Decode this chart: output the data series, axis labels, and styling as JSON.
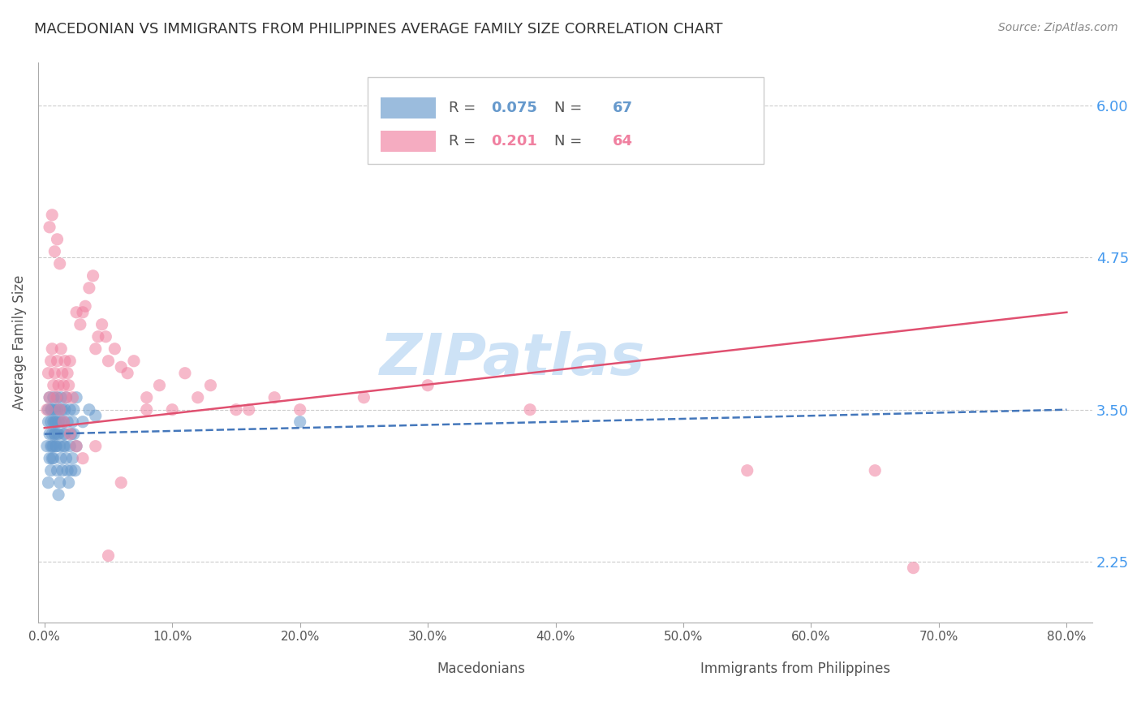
{
  "title": "MACEDONIAN VS IMMIGRANTS FROM PHILIPPINES AVERAGE FAMILY SIZE CORRELATION CHART",
  "source": "Source: ZipAtlas.com",
  "ylabel": "Average Family Size",
  "yticks_right": [
    2.25,
    3.5,
    4.75,
    6.0
  ],
  "ymin": 1.75,
  "ymax": 6.35,
  "xmin": -0.005,
  "xmax": 0.82,
  "legend_r1": "R = ",
  "legend_v1": "0.075",
  "legend_n1_label": "N = ",
  "legend_n1_val": "67",
  "legend_r2": "R = ",
  "legend_v2": "0.201",
  "legend_n2_label": "N = ",
  "legend_n2_val": "64",
  "macedonian_scatter_x": [
    0.002,
    0.003,
    0.003,
    0.004,
    0.004,
    0.005,
    0.005,
    0.005,
    0.006,
    0.006,
    0.006,
    0.007,
    0.007,
    0.007,
    0.008,
    0.008,
    0.008,
    0.009,
    0.009,
    0.01,
    0.01,
    0.01,
    0.011,
    0.011,
    0.012,
    0.012,
    0.013,
    0.013,
    0.014,
    0.015,
    0.015,
    0.016,
    0.016,
    0.017,
    0.018,
    0.02,
    0.021,
    0.022,
    0.023,
    0.025,
    0.003,
    0.004,
    0.005,
    0.006,
    0.007,
    0.008,
    0.009,
    0.01,
    0.011,
    0.012,
    0.013,
    0.014,
    0.015,
    0.016,
    0.017,
    0.018,
    0.019,
    0.02,
    0.021,
    0.022,
    0.023,
    0.024,
    0.025,
    0.03,
    0.035,
    0.04,
    0.2
  ],
  "macedonian_scatter_y": [
    3.2,
    3.4,
    3.5,
    3.6,
    3.3,
    3.4,
    3.5,
    3.2,
    3.1,
    3.3,
    3.5,
    3.4,
    3.2,
    3.6,
    3.3,
    3.4,
    3.5,
    3.2,
    3.4,
    3.3,
    3.5,
    3.6,
    3.4,
    3.3,
    3.5,
    3.2,
    3.4,
    3.6,
    3.5,
    3.3,
    3.4,
    3.5,
    3.2,
    3.6,
    3.4,
    3.5,
    3.3,
    3.4,
    3.5,
    3.6,
    2.9,
    3.1,
    3.0,
    3.2,
    3.1,
    3.3,
    3.2,
    3.0,
    2.8,
    2.9,
    3.1,
    3.0,
    3.2,
    3.3,
    3.1,
    3.0,
    2.9,
    3.2,
    3.0,
    3.1,
    3.3,
    3.0,
    3.2,
    3.4,
    3.5,
    3.45,
    3.4
  ],
  "philippines_scatter_x": [
    0.002,
    0.003,
    0.004,
    0.005,
    0.006,
    0.007,
    0.008,
    0.009,
    0.01,
    0.011,
    0.012,
    0.013,
    0.014,
    0.015,
    0.016,
    0.017,
    0.018,
    0.019,
    0.02,
    0.022,
    0.025,
    0.028,
    0.03,
    0.032,
    0.035,
    0.038,
    0.04,
    0.042,
    0.045,
    0.048,
    0.05,
    0.055,
    0.06,
    0.065,
    0.07,
    0.08,
    0.09,
    0.1,
    0.11,
    0.12,
    0.13,
    0.15,
    0.16,
    0.18,
    0.2,
    0.25,
    0.3,
    0.38,
    0.55,
    0.68,
    0.004,
    0.006,
    0.008,
    0.01,
    0.012,
    0.015,
    0.02,
    0.025,
    0.03,
    0.04,
    0.05,
    0.06,
    0.08,
    0.65
  ],
  "philippines_scatter_y": [
    3.5,
    3.8,
    3.6,
    3.9,
    4.0,
    3.7,
    3.8,
    3.6,
    3.9,
    3.7,
    3.5,
    4.0,
    3.8,
    3.7,
    3.9,
    3.6,
    3.8,
    3.7,
    3.9,
    3.6,
    4.3,
    4.2,
    4.3,
    4.35,
    4.5,
    4.6,
    4.0,
    4.1,
    4.2,
    4.1,
    3.9,
    4.0,
    3.85,
    3.8,
    3.9,
    3.6,
    3.7,
    3.5,
    3.8,
    3.6,
    3.7,
    3.5,
    3.5,
    3.6,
    3.5,
    3.6,
    3.7,
    3.5,
    3.0,
    2.2,
    5.0,
    5.1,
    4.8,
    4.9,
    4.7,
    3.4,
    3.3,
    3.2,
    3.1,
    3.2,
    2.3,
    2.9,
    3.5,
    3.0
  ],
  "mac_trend_x": [
    0.0,
    0.8
  ],
  "mac_trend_y": [
    3.3,
    3.5
  ],
  "phil_trend_x": [
    0.0,
    0.8
  ],
  "phil_trend_y": [
    3.35,
    4.3
  ],
  "scatter_color_mac": "#6699cc",
  "scatter_color_phil": "#f080a0",
  "trend_color_mac": "#4477bb",
  "trend_color_phil": "#e05070",
  "grid_color": "#cccccc",
  "background_color": "#ffffff",
  "watermark_text": "ZIPatlas",
  "watermark_color": "#c8dff5",
  "title_color": "#333333",
  "axis_label_color": "#555555",
  "right_axis_color": "#4499ee",
  "scatter_alpha": 0.55,
  "scatter_size": 120,
  "title_fontsize": 13,
  "source_fontsize": 10,
  "legend_fontsize": 13,
  "axis_fontsize": 11,
  "bottom_legend_mac": "Macedonians",
  "bottom_legend_phil": "Immigrants from Philippines"
}
